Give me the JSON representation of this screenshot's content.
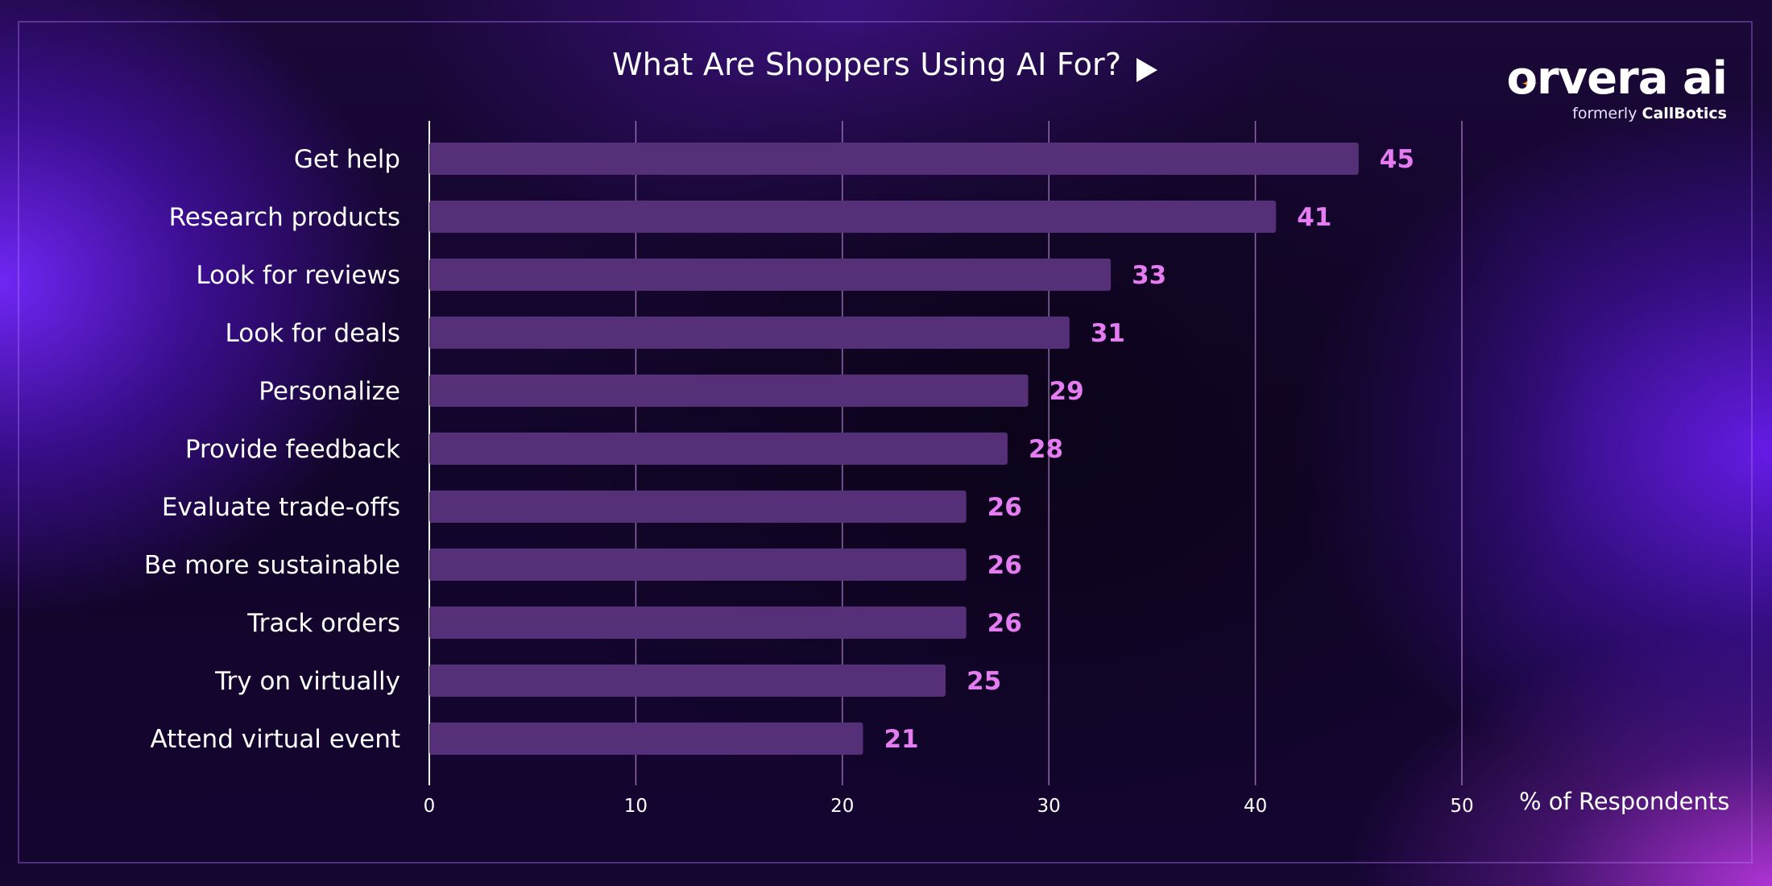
{
  "header": {
    "title": "What Are Shoppers Using AI For?",
    "title_icon": "play-triangle-icon"
  },
  "logo": {
    "wordmark": "orvera ai",
    "spark_icon": "sparkle-icon",
    "sub_prefix": "formerly",
    "sub_brand": "CallBotics",
    "spark_color": "#ff9a3c"
  },
  "colors": {
    "bar": "#553078",
    "value_label": "#e57cf2",
    "gridline": "#b98ad6",
    "text": "#ffffff"
  },
  "chart_data": {
    "type": "bar",
    "orientation": "horizontal",
    "title": "What Are Shoppers Using AI For?",
    "xlabel": "% of Respondents",
    "ylabel": "",
    "xlim": [
      0,
      50
    ],
    "xticks": [
      0,
      10,
      20,
      30,
      40,
      50
    ],
    "grid": true,
    "categories": [
      "Get help",
      "Research products",
      "Look for reviews",
      "Look for deals",
      "Personalize",
      "Provide feedback",
      "Evaluate trade-offs",
      "Be more sustainable",
      "Track orders",
      "Try on virtually",
      "Attend virtual event"
    ],
    "values": [
      45,
      41,
      33,
      31,
      29,
      28,
      26,
      26,
      26,
      25,
      21
    ]
  }
}
